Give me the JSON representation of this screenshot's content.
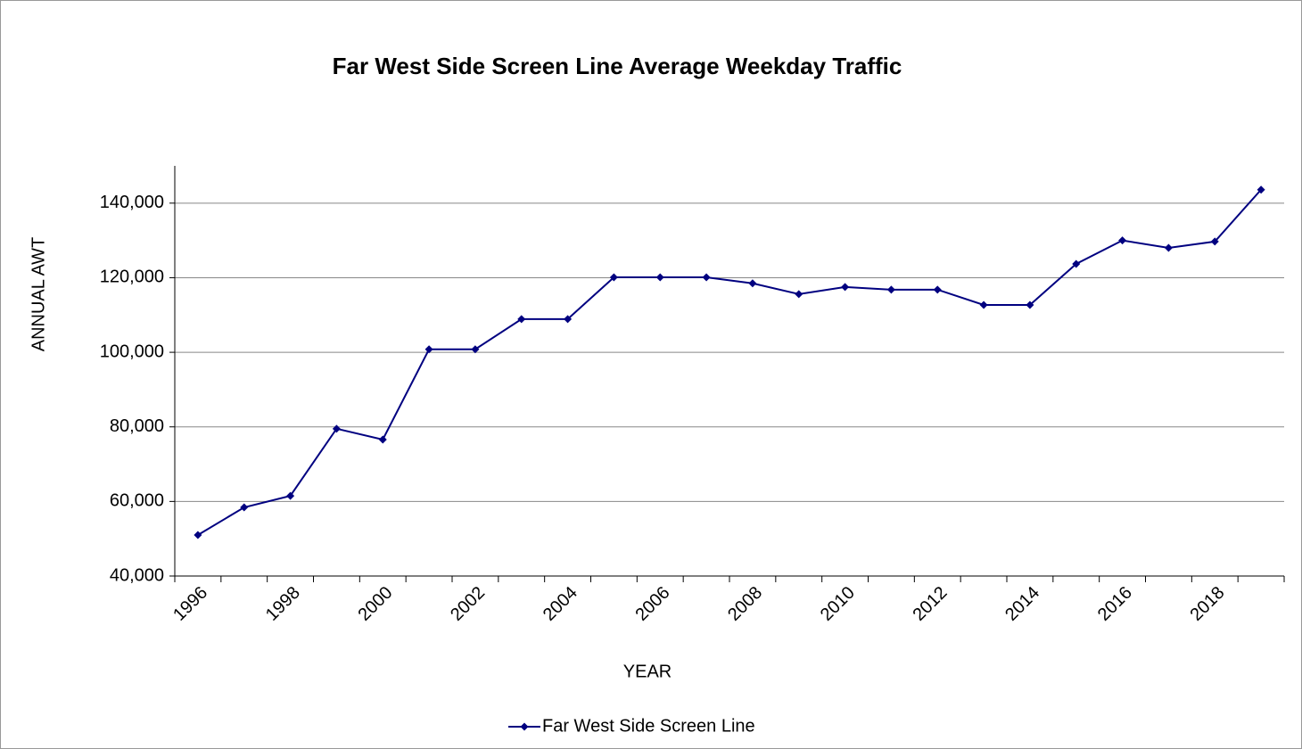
{
  "chart_data": {
    "type": "line",
    "title": "Far West Side Screen Line Average Weekday Traffic",
    "x_label": "YEAR",
    "y_label": "ANNUAL AWT",
    "categories": [
      "1996",
      null,
      "1998",
      null,
      "2000",
      null,
      "2002",
      null,
      "2004",
      null,
      "2006",
      null,
      "2008",
      null,
      "2010",
      null,
      "2012",
      null,
      "2014",
      null,
      "2016",
      null,
      "2018",
      null
    ],
    "series": [
      {
        "name": "Far West Side Screen Line",
        "color": "#000080",
        "values": [
          51000,
          58400,
          61500,
          79500,
          76600,
          100800,
          100800,
          108900,
          108900,
          120100,
          120100,
          120100,
          118500,
          115600,
          117500,
          116800,
          116800,
          112700,
          112700,
          123700,
          130000,
          128000,
          129700,
          143600
        ]
      }
    ],
    "ylim": [
      40000,
      150000
    ],
    "yticks": [
      {
        "value": 40000,
        "label": "40,000"
      },
      {
        "value": 60000,
        "label": "60,000"
      },
      {
        "value": 80000,
        "label": "80,000"
      },
      {
        "value": 100000,
        "label": "100,000"
      },
      {
        "value": 120000,
        "label": "120,000"
      },
      {
        "value": 140000,
        "label": "140,000"
      }
    ],
    "grid": true,
    "legend": "bottom"
  }
}
